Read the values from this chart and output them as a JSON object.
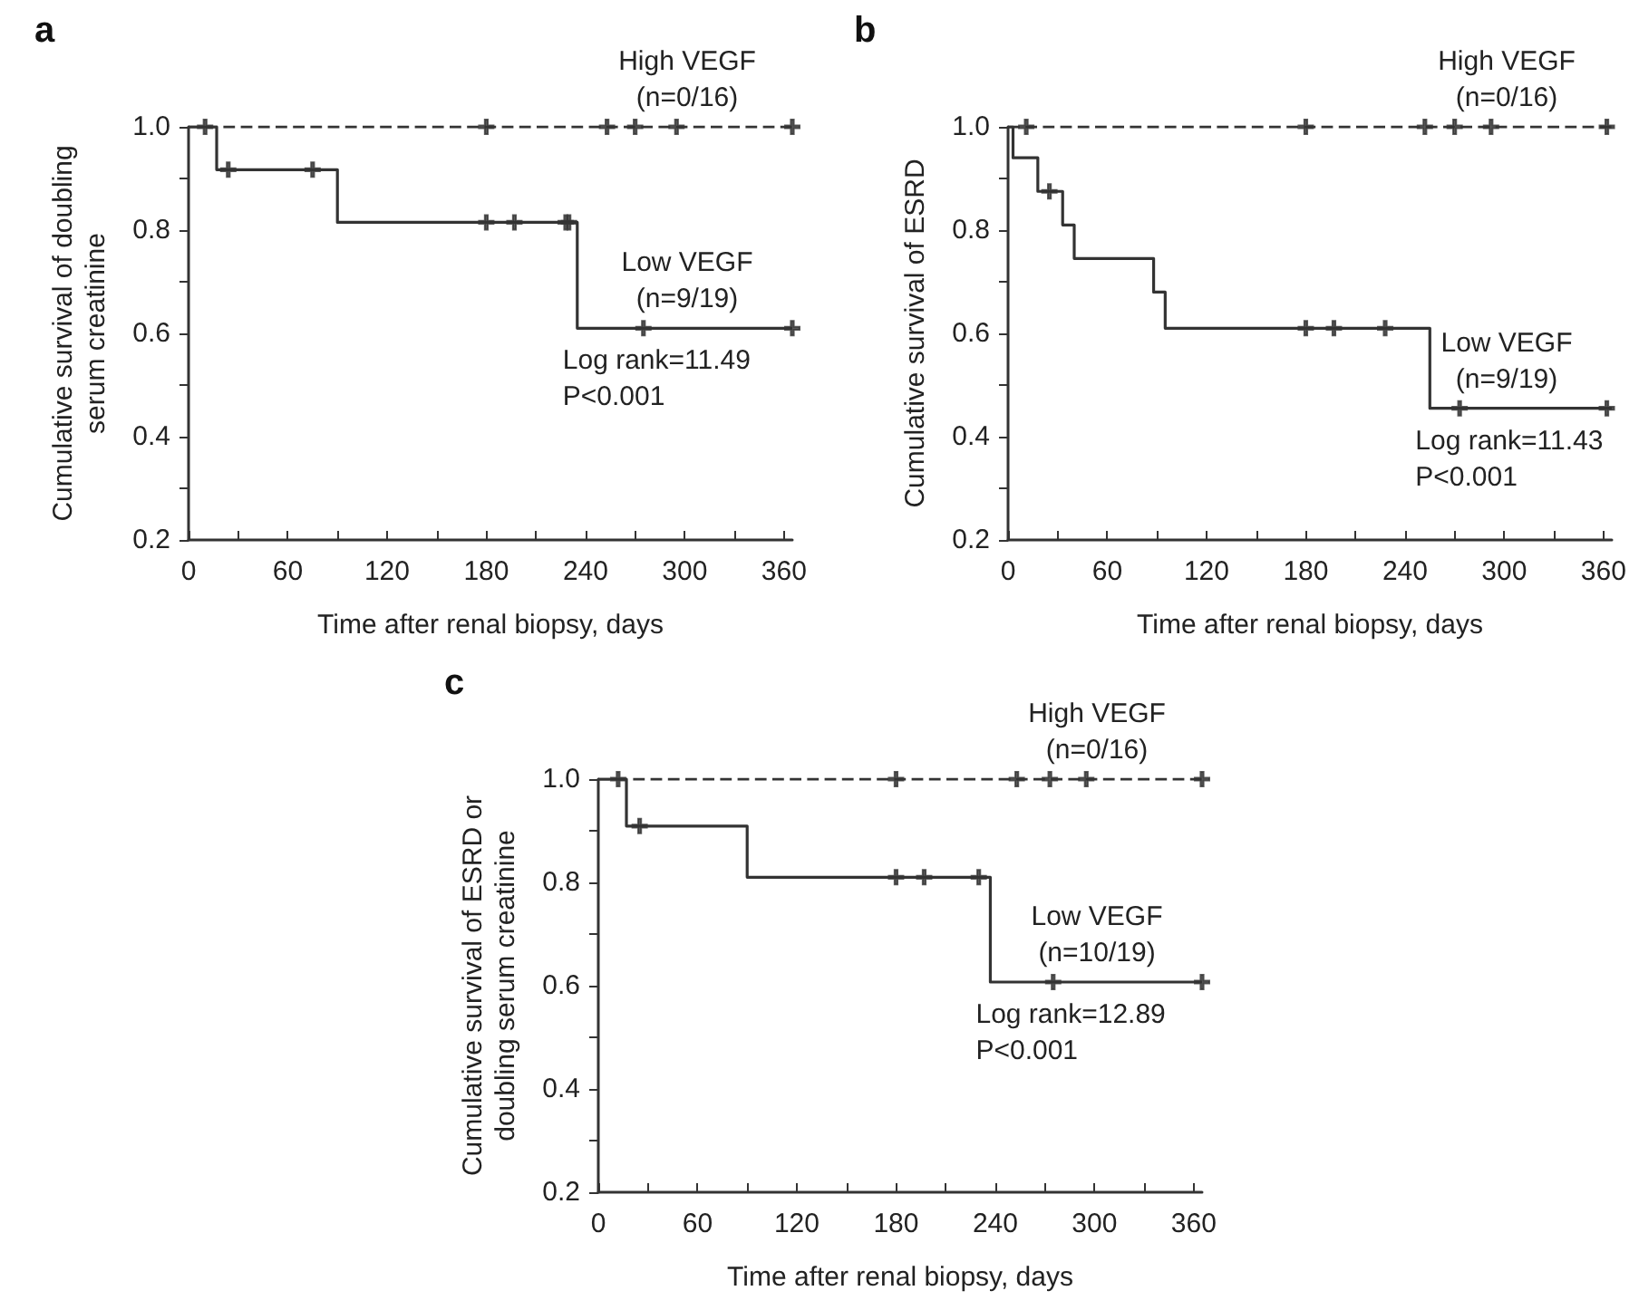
{
  "chart_data": [
    {
      "type": "step",
      "title": "a",
      "xlabel": "Time after renal biopsy, days",
      "ylabel": "Cumulative survival of doubling\nserum creatinine",
      "xlim": [
        0,
        365
      ],
      "ylim": [
        0.2,
        1.0
      ],
      "xticks": [
        0,
        {
          "value": 30,
          "label": null
        },
        60,
        {
          "value": 90,
          "label": null
        },
        120,
        {
          "value": 150,
          "label": null
        },
        180,
        {
          "value": 210,
          "label": null
        },
        240,
        {
          "value": 270,
          "label": null
        },
        300,
        {
          "value": 330,
          "label": null
        },
        360
      ],
      "yticks": [
        0.2,
        {
          "value": 0.3,
          "label": null
        },
        0.4,
        {
          "value": 0.5,
          "label": null
        },
        0.6,
        {
          "value": 0.7,
          "label": null
        },
        0.8,
        {
          "value": 0.9,
          "label": null
        },
        {
          "value": 1,
          "label": "1.0"
        }
      ],
      "grid": false,
      "legend": false,
      "annotations": [
        "Log rank=11.49\nP<0.001"
      ],
      "series": [
        {
          "name": "High VEGF\n(n=0/16)",
          "color": "#333333",
          "line_style": "dashed",
          "x": [
            0,
            365
          ],
          "values": [
            1,
            1
          ]
        },
        {
          "name": "Low VEGF\n(n=9/19)",
          "color": "#333333",
          "line_style": "solid",
          "x": [
            0,
            17,
            90,
            235,
            365
          ],
          "values": [
            1,
            0.917,
            0.815,
            0.61,
            0.61
          ]
        },
        {
          "type": "scatter",
          "marker": "cross",
          "color": "#333333",
          "x": [
            10,
            180,
            253,
            270,
            295,
            365
          ],
          "values": [
            1,
            1,
            1,
            1,
            1,
            1
          ]
        },
        {
          "type": "scatter",
          "marker": "cross",
          "color": "#333333",
          "x": [
            24,
            75,
            180,
            197,
            228,
            230,
            275,
            365
          ],
          "values": [
            0.917,
            0.917,
            0.815,
            0.815,
            0.815,
            0.815,
            0.61,
            0.61
          ]
        }
      ]
    },
    {
      "type": "step",
      "title": "b",
      "xlabel": "Time after renal biopsy, days",
      "ylabel": "Cumulative survival of ESRD",
      "xlim": [
        0,
        365
      ],
      "ylim": [
        0.2,
        1.0
      ],
      "xticks": [
        0,
        {
          "value": 30,
          "label": null
        },
        60,
        {
          "value": 90,
          "label": null
        },
        120,
        {
          "value": 150,
          "label": null
        },
        180,
        {
          "value": 210,
          "label": null
        },
        240,
        {
          "value": 270,
          "label": null
        },
        300,
        {
          "value": 330,
          "label": null
        },
        360
      ],
      "yticks": [
        0.2,
        {
          "value": 0.3,
          "label": null
        },
        0.4,
        {
          "value": 0.5,
          "label": null
        },
        0.6,
        {
          "value": 0.7,
          "label": null
        },
        0.8,
        {
          "value": 0.9,
          "label": null
        },
        {
          "value": 1,
          "label": "1.0"
        }
      ],
      "grid": false,
      "legend": false,
      "annotations": [
        "Log rank=11.43\nP<0.001"
      ],
      "series": [
        {
          "name": "High VEGF\n(n=0/16)",
          "color": "#333333",
          "line_style": "dashed",
          "x": [
            0,
            365
          ],
          "values": [
            1,
            1
          ]
        },
        {
          "name": "Low VEGF\n(n=9/19)",
          "color": "#333333",
          "line_style": "solid",
          "x": [
            0,
            3,
            18,
            33,
            40,
            88,
            95,
            255,
            365
          ],
          "values": [
            1,
            0.94,
            0.875,
            0.81,
            0.745,
            0.68,
            0.61,
            0.455,
            0.455
          ]
        },
        {
          "type": "scatter",
          "marker": "cross",
          "color": "#333333",
          "x": [
            11,
            180,
            252,
            270,
            292,
            362
          ],
          "values": [
            1,
            1,
            1,
            1,
            1,
            1
          ]
        },
        {
          "type": "scatter",
          "marker": "cross",
          "color": "#333333",
          "x": [
            25,
            180,
            197,
            228,
            273,
            362
          ],
          "values": [
            0.875,
            0.61,
            0.61,
            0.61,
            0.455,
            0.455
          ]
        }
      ]
    },
    {
      "type": "step",
      "title": "c",
      "xlabel": "Time after renal biopsy, days",
      "ylabel": "Cumulative survival of ESRD or\ndoubling serum creatinine",
      "xlim": [
        0,
        365
      ],
      "ylim": [
        0.2,
        1.0
      ],
      "xticks": [
        0,
        {
          "value": 30,
          "label": null
        },
        60,
        {
          "value": 90,
          "label": null
        },
        120,
        {
          "value": 150,
          "label": null
        },
        180,
        {
          "value": 210,
          "label": null
        },
        240,
        {
          "value": 270,
          "label": null
        },
        300,
        {
          "value": 330,
          "label": null
        },
        360
      ],
      "yticks": [
        0.2,
        {
          "value": 0.3,
          "label": null
        },
        0.4,
        {
          "value": 0.5,
          "label": null
        },
        0.6,
        {
          "value": 0.7,
          "label": null
        },
        0.8,
        {
          "value": 0.9,
          "label": null
        },
        {
          "value": 1,
          "label": "1.0"
        }
      ],
      "grid": false,
      "legend": false,
      "annotations": [
        "Log rank=12.89\nP<0.001"
      ],
      "series": [
        {
          "name": "High VEGF\n(n=0/16)",
          "color": "#333333",
          "line_style": "dashed",
          "x": [
            0,
            365
          ],
          "values": [
            1,
            1
          ]
        },
        {
          "name": "Low VEGF\n(n=10/19)",
          "color": "#333333",
          "line_style": "solid",
          "x": [
            0,
            17,
            90,
            237,
            365
          ],
          "values": [
            1,
            0.909,
            0.81,
            0.607,
            0.607
          ]
        },
        {
          "type": "scatter",
          "marker": "cross",
          "color": "#333333",
          "x": [
            12,
            180,
            253,
            273,
            295,
            365
          ],
          "values": [
            1,
            1,
            1,
            1,
            1,
            1
          ]
        },
        {
          "type": "scatter",
          "marker": "cross",
          "color": "#333333",
          "x": [
            25,
            180,
            197,
            230,
            275,
            365
          ],
          "values": [
            0.909,
            0.81,
            0.81,
            0.81,
            0.607,
            0.607
          ]
        }
      ]
    }
  ]
}
